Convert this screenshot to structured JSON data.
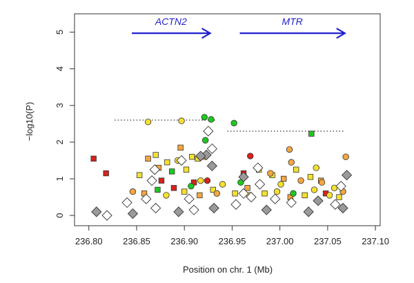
{
  "chart_data": {
    "type": "scatter",
    "xlabel": "Position on chr. 1 (Mb)",
    "ylabel": "−log10(P)",
    "xlim": [
      236.785,
      237.105
    ],
    "ylim": [
      -0.28,
      5.5
    ],
    "x_ticks": [
      "236.80",
      "236.85",
      "236.90",
      "236.95",
      "237.00",
      "237.05",
      "237.10"
    ],
    "y_ticks": [
      "0",
      "1",
      "2",
      "3",
      "4",
      "5"
    ],
    "x_tick_values": [
      236.8,
      236.85,
      236.9,
      236.95,
      237.0,
      237.05,
      237.1
    ],
    "y_tick_values": [
      0,
      1,
      2,
      3,
      4,
      5
    ],
    "genes": [
      {
        "name": "ACTN2",
        "start": 236.845,
        "end": 236.927,
        "y": 4.97
      },
      {
        "name": "MTR",
        "start": 236.958,
        "end": 237.068,
        "y": 4.97
      }
    ],
    "thresholds": [
      {
        "x_start": 236.827,
        "x_end": 236.933,
        "y": 2.6
      },
      {
        "x_start": 236.945,
        "x_end": 237.068,
        "y": 2.3
      }
    ],
    "colors": {
      "green": "#1ec81e",
      "yellow": "#f4e032",
      "orange": "#f4a640",
      "red": "#d8221c",
      "gray": "#9a9a9a",
      "white": "#ffffff",
      "gene_arrow": "#1f1fcf"
    },
    "series": [
      {
        "marker": "square",
        "points": [
          [
            236.805,
            1.55,
            "red"
          ],
          [
            236.818,
            1.15,
            "red"
          ],
          [
            236.853,
            1.1,
            "yellow"
          ],
          [
            236.862,
            1.55,
            "orange"
          ],
          [
            236.87,
            1.65,
            "yellow"
          ],
          [
            236.873,
            1.3,
            "orange"
          ],
          [
            236.882,
            1.45,
            "yellow"
          ],
          [
            236.887,
            1.2,
            "green"
          ],
          [
            236.896,
            1.85,
            "orange"
          ],
          [
            236.908,
            1.6,
            "yellow"
          ],
          [
            236.91,
            0.9,
            "red"
          ],
          [
            236.914,
            1.55,
            "yellow"
          ],
          [
            236.92,
            1.6,
            "orange"
          ],
          [
            236.902,
            1.25,
            "yellow"
          ],
          [
            236.876,
            0.95,
            "red"
          ],
          [
            236.962,
            1.15,
            "red"
          ],
          [
            236.978,
            1.25,
            "yellow"
          ],
          [
            236.992,
            1.1,
            "yellow"
          ],
          [
            237.004,
            1.0,
            "orange"
          ],
          [
            237.017,
            1.25,
            "yellow"
          ],
          [
            237.032,
            1.05,
            "yellow"
          ],
          [
            237.043,
            0.95,
            "orange"
          ],
          [
            237.033,
            2.23,
            "green"
          ],
          [
            236.858,
            0.6,
            "orange"
          ],
          [
            236.872,
            0.7,
            "green"
          ],
          [
            236.889,
            0.75,
            "red"
          ],
          [
            236.9,
            0.65,
            "yellow"
          ],
          [
            236.916,
            0.55,
            "orange"
          ],
          [
            236.93,
            0.7,
            "yellow"
          ],
          [
            236.953,
            0.6,
            "yellow"
          ],
          [
            236.966,
            0.75,
            "orange"
          ],
          [
            236.984,
            0.6,
            "yellow"
          ],
          [
            237.011,
            0.5,
            "orange"
          ],
          [
            237.026,
            0.55,
            "yellow"
          ],
          [
            237.048,
            0.6,
            "red"
          ],
          [
            237.062,
            0.5,
            "yellow"
          ]
        ]
      },
      {
        "marker": "circle",
        "points": [
          [
            236.862,
            2.55,
            "yellow"
          ],
          [
            236.897,
            2.58,
            "yellow"
          ],
          [
            236.921,
            2.68,
            "green"
          ],
          [
            236.928,
            2.62,
            "green"
          ],
          [
            236.952,
            2.52,
            "green"
          ],
          [
            236.922,
            2.05,
            "green"
          ],
          [
            236.893,
            1.5,
            "yellow"
          ],
          [
            236.924,
            0.95,
            "red"
          ],
          [
            236.969,
            1.62,
            "red"
          ],
          [
            236.99,
            1.15,
            "orange"
          ],
          [
            237.01,
            1.8,
            "orange"
          ],
          [
            237.012,
            1.45,
            "orange"
          ],
          [
            237.038,
            1.3,
            "yellow"
          ],
          [
            237.069,
            1.6,
            "orange"
          ],
          [
            237.001,
            0.85,
            "yellow"
          ],
          [
            237.022,
            0.95,
            "orange"
          ],
          [
            237.044,
            0.9,
            "orange"
          ],
          [
            237.057,
            0.75,
            "yellow"
          ],
          [
            236.959,
            0.9,
            "green"
          ],
          [
            236.94,
            0.85,
            "yellow"
          ],
          [
            236.846,
            0.65,
            "orange"
          ],
          [
            236.881,
            0.55,
            "yellow"
          ],
          [
            236.907,
            0.8,
            "green"
          ],
          [
            236.917,
            0.95,
            "yellow"
          ],
          [
            236.934,
            0.6,
            "orange"
          ],
          [
            236.968,
            0.55,
            "yellow"
          ],
          [
            236.997,
            0.65,
            "yellow"
          ],
          [
            237.014,
            0.6,
            "green"
          ],
          [
            237.036,
            0.7,
            "yellow"
          ],
          [
            237.052,
            0.55,
            "yellow"
          ],
          [
            237.066,
            0.65,
            "orange"
          ]
        ]
      },
      {
        "marker": "diamond",
        "points": [
          [
            236.925,
            2.3,
            "white"
          ],
          [
            236.929,
            1.82,
            "white"
          ],
          [
            236.923,
            1.65,
            "gray"
          ],
          [
            236.917,
            1.62,
            "gray"
          ],
          [
            236.897,
            1.5,
            "white"
          ],
          [
            236.929,
            1.35,
            "gray"
          ],
          [
            236.869,
            1.25,
            "white"
          ],
          [
            236.866,
            0.95,
            "white"
          ],
          [
            236.977,
            1.3,
            "white"
          ],
          [
            236.962,
            1.05,
            "gray"
          ],
          [
            237.07,
            1.1,
            "gray"
          ],
          [
            237.064,
            0.8,
            "white"
          ],
          [
            236.979,
            0.85,
            "white"
          ],
          [
            236.97,
            0.5,
            "white"
          ],
          [
            236.995,
            0.45,
            "white"
          ],
          [
            237.04,
            0.4,
            "gray"
          ],
          [
            236.962,
            0.6,
            "white"
          ],
          [
            236.905,
            0.45,
            "white"
          ],
          [
            236.86,
            0.45,
            "white"
          ],
          [
            236.84,
            0.35,
            "white"
          ],
          [
            236.808,
            0.1,
            "gray"
          ],
          [
            236.819,
            0.0,
            "white"
          ],
          [
            236.846,
            0.05,
            "gray"
          ],
          [
            236.87,
            0.2,
            "white"
          ],
          [
            236.894,
            0.1,
            "gray"
          ],
          [
            236.91,
            0.15,
            "white"
          ],
          [
            236.931,
            0.2,
            "gray"
          ],
          [
            236.954,
            0.3,
            "white"
          ],
          [
            236.986,
            0.15,
            "gray"
          ],
          [
            237.012,
            0.35,
            "white"
          ],
          [
            237.03,
            0.1,
            "gray"
          ],
          [
            237.058,
            0.3,
            "white"
          ],
          [
            237.066,
            0.2,
            "gray"
          ]
        ]
      }
    ]
  }
}
